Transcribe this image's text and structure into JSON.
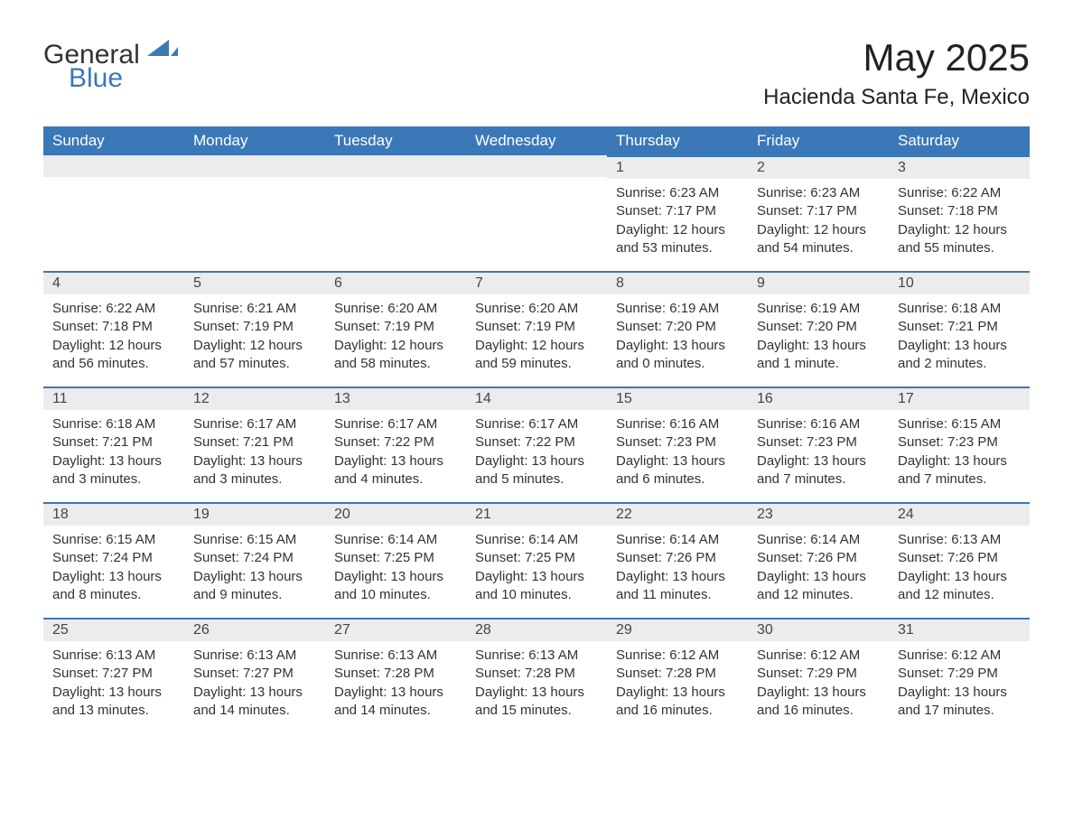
{
  "logo": {
    "word1": "General",
    "word2": "Blue",
    "accent_color": "#3b78b8"
  },
  "title": "May 2025",
  "location": "Hacienda Santa Fe, Mexico",
  "colors": {
    "header_bg": "#3b78b8",
    "header_text": "#ffffff",
    "daynum_bg": "#ececec",
    "row_divider": "#3b78b8",
    "text": "#333333",
    "background": "#ffffff"
  },
  "fonts": {
    "title_size": 42,
    "location_size": 24,
    "header_size": 17,
    "daynum_size": 16,
    "body_size": 15
  },
  "days_of_week": [
    "Sunday",
    "Monday",
    "Tuesday",
    "Wednesday",
    "Thursday",
    "Friday",
    "Saturday"
  ],
  "weeks": [
    [
      null,
      null,
      null,
      null,
      {
        "n": "1",
        "sunrise": "Sunrise: 6:23 AM",
        "sunset": "Sunset: 7:17 PM",
        "daylight": "Daylight: 12 hours and 53 minutes."
      },
      {
        "n": "2",
        "sunrise": "Sunrise: 6:23 AM",
        "sunset": "Sunset: 7:17 PM",
        "daylight": "Daylight: 12 hours and 54 minutes."
      },
      {
        "n": "3",
        "sunrise": "Sunrise: 6:22 AM",
        "sunset": "Sunset: 7:18 PM",
        "daylight": "Daylight: 12 hours and 55 minutes."
      }
    ],
    [
      {
        "n": "4",
        "sunrise": "Sunrise: 6:22 AM",
        "sunset": "Sunset: 7:18 PM",
        "daylight": "Daylight: 12 hours and 56 minutes."
      },
      {
        "n": "5",
        "sunrise": "Sunrise: 6:21 AM",
        "sunset": "Sunset: 7:19 PM",
        "daylight": "Daylight: 12 hours and 57 minutes."
      },
      {
        "n": "6",
        "sunrise": "Sunrise: 6:20 AM",
        "sunset": "Sunset: 7:19 PM",
        "daylight": "Daylight: 12 hours and 58 minutes."
      },
      {
        "n": "7",
        "sunrise": "Sunrise: 6:20 AM",
        "sunset": "Sunset: 7:19 PM",
        "daylight": "Daylight: 12 hours and 59 minutes."
      },
      {
        "n": "8",
        "sunrise": "Sunrise: 6:19 AM",
        "sunset": "Sunset: 7:20 PM",
        "daylight": "Daylight: 13 hours and 0 minutes."
      },
      {
        "n": "9",
        "sunrise": "Sunrise: 6:19 AM",
        "sunset": "Sunset: 7:20 PM",
        "daylight": "Daylight: 13 hours and 1 minute."
      },
      {
        "n": "10",
        "sunrise": "Sunrise: 6:18 AM",
        "sunset": "Sunset: 7:21 PM",
        "daylight": "Daylight: 13 hours and 2 minutes."
      }
    ],
    [
      {
        "n": "11",
        "sunrise": "Sunrise: 6:18 AM",
        "sunset": "Sunset: 7:21 PM",
        "daylight": "Daylight: 13 hours and 3 minutes."
      },
      {
        "n": "12",
        "sunrise": "Sunrise: 6:17 AM",
        "sunset": "Sunset: 7:21 PM",
        "daylight": "Daylight: 13 hours and 3 minutes."
      },
      {
        "n": "13",
        "sunrise": "Sunrise: 6:17 AM",
        "sunset": "Sunset: 7:22 PM",
        "daylight": "Daylight: 13 hours and 4 minutes."
      },
      {
        "n": "14",
        "sunrise": "Sunrise: 6:17 AM",
        "sunset": "Sunset: 7:22 PM",
        "daylight": "Daylight: 13 hours and 5 minutes."
      },
      {
        "n": "15",
        "sunrise": "Sunrise: 6:16 AM",
        "sunset": "Sunset: 7:23 PM",
        "daylight": "Daylight: 13 hours and 6 minutes."
      },
      {
        "n": "16",
        "sunrise": "Sunrise: 6:16 AM",
        "sunset": "Sunset: 7:23 PM",
        "daylight": "Daylight: 13 hours and 7 minutes."
      },
      {
        "n": "17",
        "sunrise": "Sunrise: 6:15 AM",
        "sunset": "Sunset: 7:23 PM",
        "daylight": "Daylight: 13 hours and 7 minutes."
      }
    ],
    [
      {
        "n": "18",
        "sunrise": "Sunrise: 6:15 AM",
        "sunset": "Sunset: 7:24 PM",
        "daylight": "Daylight: 13 hours and 8 minutes."
      },
      {
        "n": "19",
        "sunrise": "Sunrise: 6:15 AM",
        "sunset": "Sunset: 7:24 PM",
        "daylight": "Daylight: 13 hours and 9 minutes."
      },
      {
        "n": "20",
        "sunrise": "Sunrise: 6:14 AM",
        "sunset": "Sunset: 7:25 PM",
        "daylight": "Daylight: 13 hours and 10 minutes."
      },
      {
        "n": "21",
        "sunrise": "Sunrise: 6:14 AM",
        "sunset": "Sunset: 7:25 PM",
        "daylight": "Daylight: 13 hours and 10 minutes."
      },
      {
        "n": "22",
        "sunrise": "Sunrise: 6:14 AM",
        "sunset": "Sunset: 7:26 PM",
        "daylight": "Daylight: 13 hours and 11 minutes."
      },
      {
        "n": "23",
        "sunrise": "Sunrise: 6:14 AM",
        "sunset": "Sunset: 7:26 PM",
        "daylight": "Daylight: 13 hours and 12 minutes."
      },
      {
        "n": "24",
        "sunrise": "Sunrise: 6:13 AM",
        "sunset": "Sunset: 7:26 PM",
        "daylight": "Daylight: 13 hours and 12 minutes."
      }
    ],
    [
      {
        "n": "25",
        "sunrise": "Sunrise: 6:13 AM",
        "sunset": "Sunset: 7:27 PM",
        "daylight": "Daylight: 13 hours and 13 minutes."
      },
      {
        "n": "26",
        "sunrise": "Sunrise: 6:13 AM",
        "sunset": "Sunset: 7:27 PM",
        "daylight": "Daylight: 13 hours and 14 minutes."
      },
      {
        "n": "27",
        "sunrise": "Sunrise: 6:13 AM",
        "sunset": "Sunset: 7:28 PM",
        "daylight": "Daylight: 13 hours and 14 minutes."
      },
      {
        "n": "28",
        "sunrise": "Sunrise: 6:13 AM",
        "sunset": "Sunset: 7:28 PM",
        "daylight": "Daylight: 13 hours and 15 minutes."
      },
      {
        "n": "29",
        "sunrise": "Sunrise: 6:12 AM",
        "sunset": "Sunset: 7:28 PM",
        "daylight": "Daylight: 13 hours and 16 minutes."
      },
      {
        "n": "30",
        "sunrise": "Sunrise: 6:12 AM",
        "sunset": "Sunset: 7:29 PM",
        "daylight": "Daylight: 13 hours and 16 minutes."
      },
      {
        "n": "31",
        "sunrise": "Sunrise: 6:12 AM",
        "sunset": "Sunset: 7:29 PM",
        "daylight": "Daylight: 13 hours and 17 minutes."
      }
    ]
  ]
}
